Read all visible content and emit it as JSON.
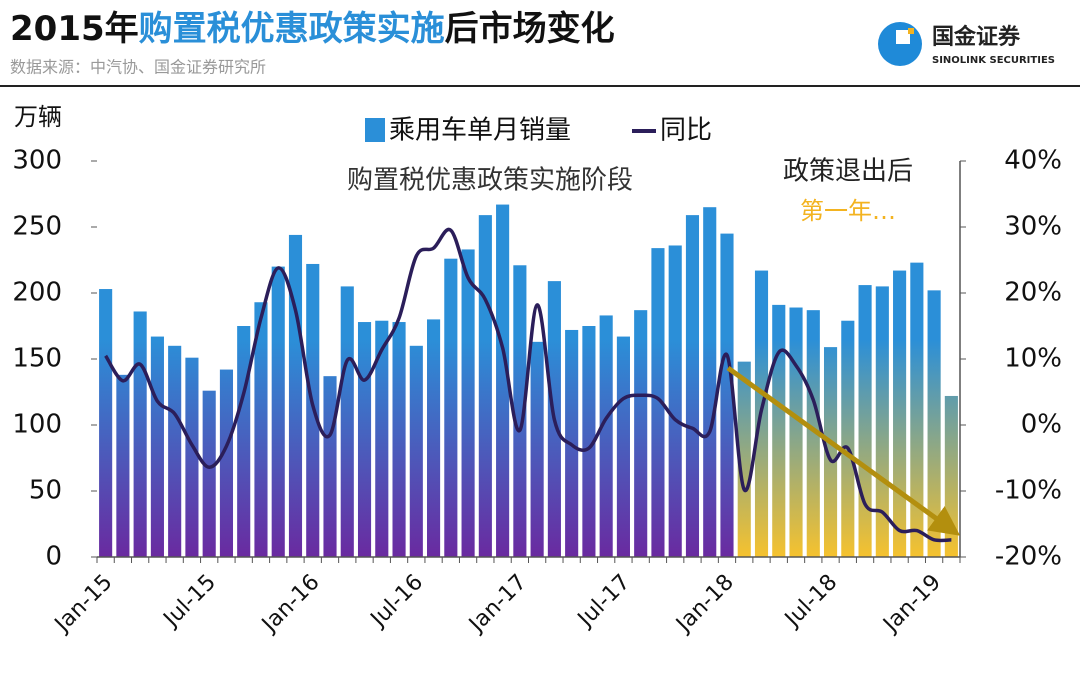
{
  "header": {
    "title": [
      "2015年",
      "购置税优惠政策实施",
      "后市场变化"
    ],
    "source": "数据来源：中汽协、国金证券研究所",
    "logo": "国金证券",
    "logo_en": "SINOLINK SECURITIES"
  },
  "chart_data": {
    "type": "bar_line",
    "y_label": "万辆",
    "annotations": [
      "购置税优惠政策实施阶段",
      "政策退出后",
      "第一年…"
    ],
    "categories": [
      "Jan-15",
      null,
      null,
      null,
      null,
      null,
      "Jul-15",
      null,
      null,
      null,
      null,
      null,
      "Jan-16",
      null,
      null,
      null,
      null,
      null,
      "Jul-16",
      null,
      null,
      null,
      null,
      null,
      "Jan-17",
      null,
      null,
      null,
      null,
      null,
      "Jul-17",
      null,
      null,
      null,
      null,
      null,
      "Jan-18",
      null,
      null,
      null,
      null,
      null,
      "Jul-18",
      null,
      null,
      null,
      null,
      null,
      "Jan-19",
      null
    ],
    "series": [
      {
        "name": "乘用车单月销量",
        "color": "#2b8fd8",
        "values": [
          203,
          138,
          186,
          167,
          160,
          151,
          126,
          142,
          175,
          193,
          220,
          244,
          222,
          137,
          205,
          178,
          179,
          178,
          160,
          180,
          226,
          233,
          259,
          267,
          221,
          163,
          209,
          172,
          175,
          183,
          167,
          187,
          234,
          236,
          259,
          265,
          245,
          148,
          217,
          191,
          189,
          187,
          159,
          179,
          206,
          205,
          217,
          223,
          202,
          122
        ]
      },
      {
        "name": "同比",
        "color": "#2b1e5a",
        "axis": "y2",
        "values": [
          10.5,
          6.7,
          9.2,
          3.6,
          1.7,
          -3,
          -6.4,
          -3.2,
          4.8,
          16.2,
          23.8,
          17.4,
          3,
          -1.5,
          9.8,
          6.8,
          11.4,
          16.2,
          25.6,
          26.8,
          29.5,
          22.3,
          19,
          11.7,
          -0.8,
          18.2,
          0.8,
          -3,
          -3.5,
          1,
          4,
          4.5,
          4,
          0.8,
          -0.5,
          -1,
          10.6,
          -9.8,
          2.3,
          11,
          9,
          3.8,
          -5.3,
          -3.5,
          -12,
          -13.2,
          -16,
          -16,
          -17.4,
          -17.4
        ]
      }
    ],
    "ylim": [
      0,
      300
    ],
    "yticks": [
      0,
      50,
      100,
      150,
      200,
      250,
      300
    ],
    "y2lim": [
      -20,
      40
    ],
    "y2ticks": [
      {
        "value": -20,
        "label": "-20%"
      },
      {
        "value": -10,
        "label": "-10%"
      },
      {
        "value": 0,
        "label": "0%"
      },
      {
        "value": 10,
        "label": "10%"
      },
      {
        "value": 20,
        "label": "20%"
      },
      {
        "value": 30,
        "label": "30%"
      },
      {
        "value": 40,
        "label": "40%"
      }
    ],
    "highlight_color": "#f6c22e",
    "base_color": "#6a2aa0",
    "arrow_color": "#b38f0e",
    "legend": "top"
  }
}
